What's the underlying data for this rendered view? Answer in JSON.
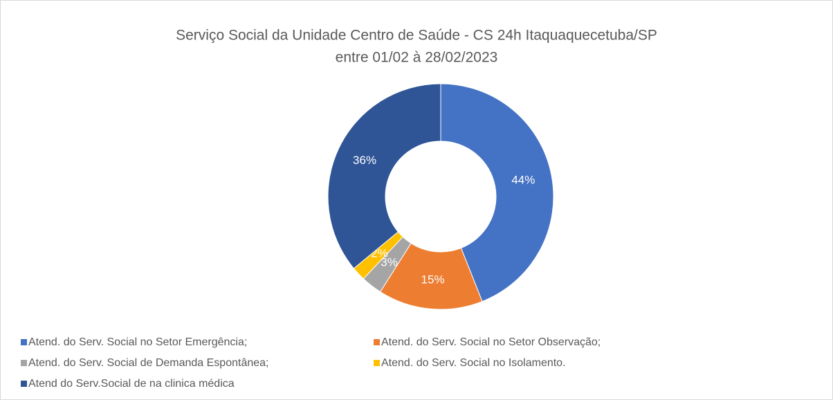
{
  "chart_data": {
    "type": "donut",
    "title": "Serviço Social da Unidade Centro de Saúde - CS 24h Itaquaquecetuba/SP",
    "subtitle": "entre 01/02 à 28/02/2023",
    "categories": [
      "Atend. do Serv. Social no Setor Emergência;",
      "Atend. do Serv. Social no Setor Observação;",
      "Atend. do Serv. Social de Demanda Espontânea;",
      "Atend. do Serv. Social no Isolamento.",
      "Atend do Serv.Social de na clinica médica"
    ],
    "values": [
      44,
      15,
      3,
      2,
      36
    ],
    "value_labels": [
      "44%",
      "15%",
      "3%",
      "2%",
      "36%"
    ],
    "colors": [
      "#4472c4",
      "#ed7d31",
      "#a5a5a5",
      "#ffc000",
      "#2f5597"
    ],
    "legend": "bottom"
  }
}
